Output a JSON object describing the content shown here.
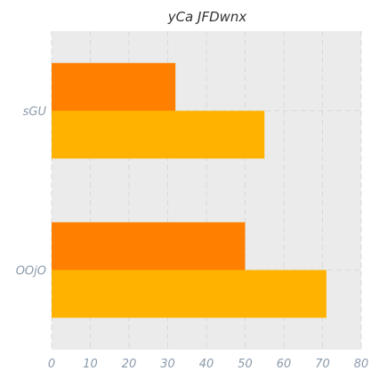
{
  "chart_data": {
    "type": "bar",
    "orientation": "horizontal",
    "title": "yCa  JFDwnx",
    "xlabel": "",
    "ylabel": "",
    "categories": [
      "sGU",
      "OOjO"
    ],
    "series": [
      {
        "values": [
          32,
          50
        ],
        "color": "#ff8000"
      },
      {
        "values": [
          55,
          71
        ],
        "color": "#ffb300"
      }
    ],
    "xlim": [
      0,
      80
    ],
    "xticks": [
      0,
      10,
      20,
      30,
      40,
      50,
      60,
      70,
      80
    ],
    "grid": true,
    "legend": "none",
    "plot_background": "#ebebeb"
  }
}
